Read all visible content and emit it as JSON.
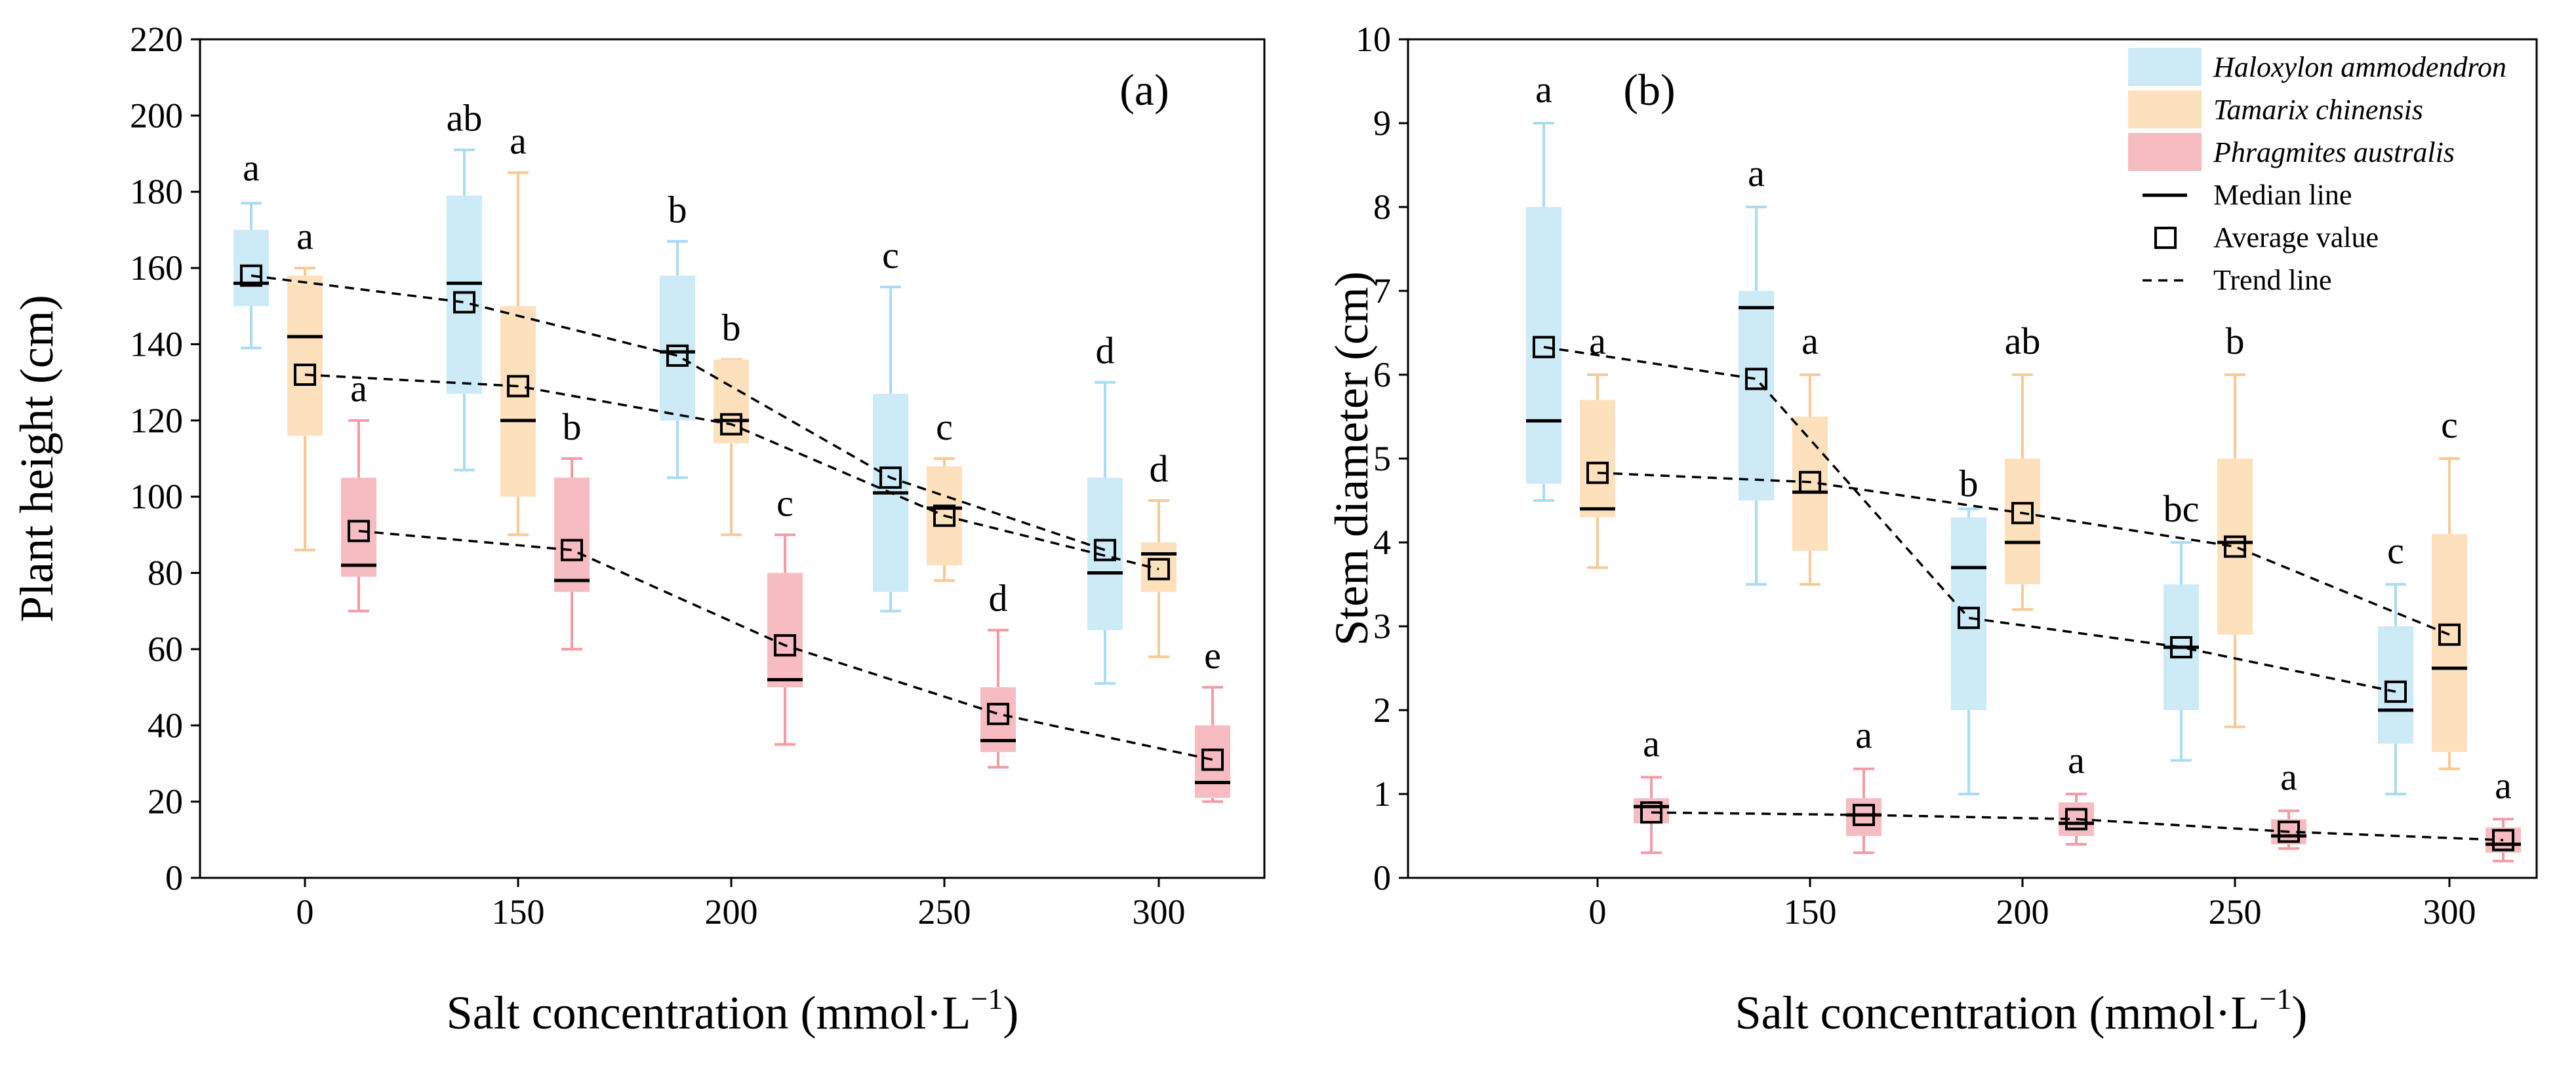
{
  "chart_data": [
    {
      "type": "box",
      "panel_label": "(a)",
      "title": "",
      "xlabel": "Salt concentration (mmol·L⁻¹)",
      "xlabel_main": "Salt concentration (mmol·L",
      "xlabel_sup": "−1",
      "xlabel_tail": ")",
      "ylabel": "Plant height (cm)",
      "ylim": [
        0,
        220
      ],
      "yticks": [
        0,
        20,
        40,
        60,
        80,
        100,
        120,
        140,
        160,
        180,
        200,
        220
      ],
      "categories": [
        "0",
        "150",
        "200",
        "250",
        "300"
      ],
      "series": [
        {
          "name": "Haloxylon ammodendron",
          "color": "#cdeaf7",
          "whisker_color": "#a9dcf2",
          "boxes": [
            {
              "min": 139,
              "q1": 150,
              "median": 156,
              "q3": 170,
              "max": 177,
              "mean": 158,
              "letter": "a",
              "letter_y": 183
            },
            {
              "min": 107,
              "q1": 127,
              "median": 156,
              "q3": 179,
              "max": 191,
              "mean": 151,
              "letter": "ab",
              "letter_y": 196
            },
            {
              "min": 105,
              "q1": 120,
              "median": 138,
              "q3": 158,
              "max": 167,
              "mean": 137,
              "letter": "b",
              "letter_y": 172
            },
            {
              "min": 70,
              "q1": 75,
              "median": 101,
              "q3": 127,
              "max": 155,
              "mean": 105,
              "letter": "c",
              "letter_y": 160
            },
            {
              "min": 51,
              "q1": 65,
              "median": 80,
              "q3": 105,
              "max": 130,
              "mean": 86,
              "letter": "d",
              "letter_y": 135
            }
          ]
        },
        {
          "name": "Tamarix chinensis",
          "color": "#fde1bd",
          "whisker_color": "#f9c995",
          "boxes": [
            {
              "min": 86,
              "q1": 116,
              "median": 142,
              "q3": 158,
              "max": 160,
              "mean": 132,
              "letter": "a",
              "letter_y": 165
            },
            {
              "min": 90,
              "q1": 100,
              "median": 120,
              "q3": 150,
              "max": 185,
              "mean": 129,
              "letter": "a",
              "letter_y": 190
            },
            {
              "min": 90,
              "q1": 114,
              "median": 120,
              "q3": 136,
              "max": 136,
              "mean": 119,
              "letter": "b",
              "letter_y": 141
            },
            {
              "min": 78,
              "q1": 82,
              "median": 97,
              "q3": 108,
              "max": 110,
              "mean": 95,
              "letter": "c",
              "letter_y": 115
            },
            {
              "min": 58,
              "q1": 75,
              "median": 85,
              "q3": 88,
              "max": 99,
              "mean": 81,
              "letter": "d",
              "letter_y": 104
            }
          ]
        },
        {
          "name": "Phragmites australis",
          "color": "#f7bcc2",
          "whisker_color": "#f29ca6",
          "boxes": [
            {
              "min": 70,
              "q1": 79,
              "median": 82,
              "q3": 105,
              "max": 120,
              "mean": 91,
              "letter": "a",
              "letter_y": 125
            },
            {
              "min": 60,
              "q1": 75,
              "median": 78,
              "q3": 105,
              "max": 110,
              "mean": 86,
              "letter": "b",
              "letter_y": 115
            },
            {
              "min": 35,
              "q1": 50,
              "median": 52,
              "q3": 80,
              "max": 90,
              "mean": 61,
              "letter": "c",
              "letter_y": 95
            },
            {
              "min": 29,
              "q1": 33,
              "median": 36,
              "q3": 50,
              "max": 65,
              "mean": 43,
              "letter": "d",
              "letter_y": 70
            },
            {
              "min": 20,
              "q1": 21,
              "median": 25,
              "q3": 40,
              "max": 50,
              "mean": 31,
              "letter": "e",
              "letter_y": 55
            }
          ]
        }
      ]
    },
    {
      "type": "box",
      "panel_label": "(b)",
      "title": "",
      "xlabel": "Salt concentration (mmol·L⁻¹)",
      "xlabel_main": "Salt concentration (mmol·L",
      "xlabel_sup": "−1",
      "xlabel_tail": ")",
      "ylabel": "Stem diameter (cm)",
      "ylim": [
        0,
        10
      ],
      "yticks": [
        0,
        1,
        2,
        3,
        4,
        5,
        6,
        7,
        8,
        9,
        10
      ],
      "categories": [
        "0",
        "150",
        "200",
        "250",
        "300"
      ],
      "series": [
        {
          "name": "Haloxylon ammodendron",
          "color": "#cdeaf7",
          "whisker_color": "#a9dcf2",
          "boxes": [
            {
              "min": 4.5,
              "q1": 4.7,
              "median": 5.45,
              "q3": 8.0,
              "max": 9.0,
              "mean": 6.33,
              "letter": "a",
              "letter_y": 9.25
            },
            {
              "min": 3.5,
              "q1": 4.5,
              "median": 6.8,
              "q3": 7.0,
              "max": 8.0,
              "mean": 5.95,
              "letter": "a",
              "letter_y": 8.25
            },
            {
              "min": 1.0,
              "q1": 2.0,
              "median": 3.7,
              "q3": 4.3,
              "max": 4.4,
              "mean": 3.1,
              "letter": "b",
              "letter_y": 4.55
            },
            {
              "min": 1.4,
              "q1": 2.0,
              "median": 2.75,
              "q3": 3.5,
              "max": 4.0,
              "mean": 2.75,
              "letter": "bc",
              "letter_y": 4.25
            },
            {
              "min": 1.0,
              "q1": 1.6,
              "median": 2.0,
              "q3": 3.0,
              "max": 3.5,
              "mean": 2.22,
              "letter": "c",
              "letter_y": 3.75
            }
          ]
        },
        {
          "name": "Tamarix chinensis",
          "color": "#fde1bd",
          "whisker_color": "#f9c995",
          "boxes": [
            {
              "min": 3.7,
              "q1": 4.3,
              "median": 4.4,
              "q3": 5.7,
              "max": 6.0,
              "mean": 4.83,
              "letter": "a",
              "letter_y": 6.25
            },
            {
              "min": 3.5,
              "q1": 3.9,
              "median": 4.6,
              "q3": 5.5,
              "max": 6.0,
              "mean": 4.72,
              "letter": "a",
              "letter_y": 6.25
            },
            {
              "min": 3.2,
              "q1": 3.5,
              "median": 4.0,
              "q3": 5.0,
              "max": 6.0,
              "mean": 4.35,
              "letter": "ab",
              "letter_y": 6.25
            },
            {
              "min": 1.8,
              "q1": 2.9,
              "median": 4.0,
              "q3": 5.0,
              "max": 6.0,
              "mean": 3.95,
              "letter": "b",
              "letter_y": 6.25
            },
            {
              "min": 1.3,
              "q1": 1.5,
              "median": 2.5,
              "q3": 4.1,
              "max": 5.0,
              "mean": 2.9,
              "letter": "c",
              "letter_y": 5.25
            }
          ]
        },
        {
          "name": "Phragmites australis",
          "color": "#f7bcc2",
          "whisker_color": "#f29ca6",
          "boxes": [
            {
              "min": 0.3,
              "q1": 0.65,
              "median": 0.85,
              "q3": 0.95,
              "max": 1.2,
              "mean": 0.78,
              "letter": "a",
              "letter_y": 1.45
            },
            {
              "min": 0.3,
              "q1": 0.5,
              "median": 0.75,
              "q3": 0.95,
              "max": 1.3,
              "mean": 0.75,
              "letter": "a",
              "letter_y": 1.55
            },
            {
              "min": 0.4,
              "q1": 0.5,
              "median": 0.65,
              "q3": 0.9,
              "max": 1.0,
              "mean": 0.7,
              "letter": "a",
              "letter_y": 1.25
            },
            {
              "min": 0.35,
              "q1": 0.4,
              "median": 0.5,
              "q3": 0.7,
              "max": 0.8,
              "mean": 0.55,
              "letter": "a",
              "letter_y": 1.05
            },
            {
              "min": 0.2,
              "q1": 0.3,
              "median": 0.4,
              "q3": 0.6,
              "max": 0.7,
              "mean": 0.45,
              "letter": "a",
              "letter_y": 0.95
            }
          ]
        }
      ]
    }
  ],
  "legend": {
    "placement": "top-right of panel (b)",
    "items": [
      {
        "kind": "box",
        "label": "Haloxylon ammodendron",
        "color": "#cdeaf7",
        "italic": true
      },
      {
        "kind": "box",
        "label": "Tamarix chinensis",
        "color": "#fde1bd",
        "italic": true
      },
      {
        "kind": "box",
        "label": "Phragmites australis",
        "color": "#f7bcc2",
        "italic": true
      },
      {
        "kind": "line",
        "label": "Median line",
        "italic": false
      },
      {
        "kind": "square",
        "label": "Average value",
        "italic": false
      },
      {
        "kind": "dash",
        "label": "Trend line",
        "italic": false
      }
    ]
  }
}
